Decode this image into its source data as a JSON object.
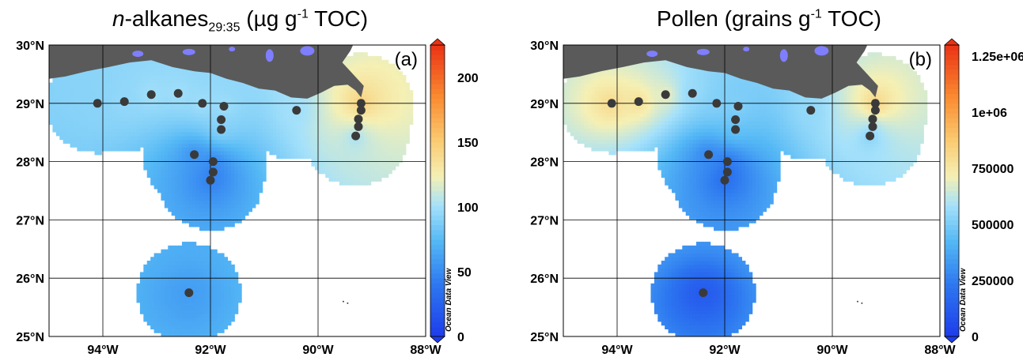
{
  "chart_data": [
    {
      "type": "heatmap",
      "panel_label": "(a)",
      "title": {
        "italic": "n",
        "main": "-alkanes",
        "sub": "29:35",
        "unit_pre": " (µg g",
        "sup": "-1",
        "unit_post": " TOC)"
      },
      "xlim": [
        -95,
        -88
      ],
      "ylim": [
        25,
        30
      ],
      "x_ticks": [
        {
          "v": -94,
          "label": "94°W"
        },
        {
          "v": -92,
          "label": "92°W"
        },
        {
          "v": -90,
          "label": "90°W"
        },
        {
          "v": -88,
          "label": "88°W"
        }
      ],
      "y_ticks": [
        {
          "v": 30,
          "label": "30°N"
        },
        {
          "v": 29,
          "label": "29°N"
        },
        {
          "v": 28,
          "label": "28°N"
        },
        {
          "v": 27,
          "label": "27°N"
        },
        {
          "v": 26,
          "label": "26°N"
        },
        {
          "v": 25,
          "label": "25°N"
        }
      ],
      "colorbar": {
        "min": 0,
        "max": 225,
        "ticks": [
          {
            "v": 200,
            "label": "200"
          },
          {
            "v": 150,
            "label": "150"
          },
          {
            "v": 100,
            "label": "100"
          },
          {
            "v": 50,
            "label": "50"
          },
          {
            "v": 0,
            "label": "0"
          }
        ]
      },
      "watermark": "Ocean Data View",
      "stations": [
        {
          "lon": -94.1,
          "lat": 29.0,
          "value": 92
        },
        {
          "lon": -93.6,
          "lat": 29.03,
          "value": 95
        },
        {
          "lon": -93.1,
          "lat": 29.15,
          "value": 100
        },
        {
          "lon": -92.6,
          "lat": 29.17,
          "value": 100
        },
        {
          "lon": -92.15,
          "lat": 29.0,
          "value": 100
        },
        {
          "lon": -91.75,
          "lat": 28.95,
          "value": 100
        },
        {
          "lon": -91.8,
          "lat": 28.72,
          "value": 95
        },
        {
          "lon": -91.8,
          "lat": 28.55,
          "value": 90
        },
        {
          "lon": -92.3,
          "lat": 28.12,
          "value": 55
        },
        {
          "lon": -91.95,
          "lat": 28.0,
          "value": 50
        },
        {
          "lon": -91.95,
          "lat": 27.82,
          "value": 45
        },
        {
          "lon": -92.0,
          "lat": 27.68,
          "value": 45
        },
        {
          "lon": -90.4,
          "lat": 28.88,
          "value": 100
        },
        {
          "lon": -89.2,
          "lat": 29.0,
          "value": 150
        },
        {
          "lon": -89.2,
          "lat": 28.88,
          "value": 140
        },
        {
          "lon": -89.25,
          "lat": 28.73,
          "value": 125
        },
        {
          "lon": -89.25,
          "lat": 28.6,
          "value": 110
        },
        {
          "lon": -89.3,
          "lat": 28.44,
          "value": 100
        },
        {
          "lon": -92.4,
          "lat": 25.75,
          "value": 60
        }
      ]
    },
    {
      "type": "heatmap",
      "panel_label": "(b)",
      "title": {
        "italic": "",
        "main": "Pollen (grains g",
        "sub": "",
        "unit_pre": "",
        "sup": "-1",
        "unit_post": " TOC)"
      },
      "xlim": [
        -95,
        -88
      ],
      "ylim": [
        25,
        30
      ],
      "x_ticks": [
        {
          "v": -94,
          "label": "94°W"
        },
        {
          "v": -92,
          "label": "92°W"
        },
        {
          "v": -90,
          "label": "90°W"
        },
        {
          "v": -88,
          "label": "88°W"
        }
      ],
      "y_ticks": [
        {
          "v": 30,
          "label": "30°N"
        },
        {
          "v": 29,
          "label": "29°N"
        },
        {
          "v": 28,
          "label": "28°N"
        },
        {
          "v": 27,
          "label": "27°N"
        },
        {
          "v": 26,
          "label": "26°N"
        },
        {
          "v": 25,
          "label": "25°N"
        }
      ],
      "colorbar": {
        "min": 0,
        "max": 1300000,
        "ticks": [
          {
            "v": 1250000,
            "label": "1.25e+06"
          },
          {
            "v": 1000000,
            "label": "1e+06"
          },
          {
            "v": 750000,
            "label": "750000"
          },
          {
            "v": 500000,
            "label": "500000"
          },
          {
            "v": 250000,
            "label": "250000"
          },
          {
            "v": 0,
            "label": "0"
          }
        ]
      },
      "watermark": "Ocean Data View",
      "stations": [
        {
          "lon": -94.1,
          "lat": 29.0,
          "value": 800000
        },
        {
          "lon": -93.6,
          "lat": 29.03,
          "value": 780000
        },
        {
          "lon": -93.1,
          "lat": 29.15,
          "value": 700000
        },
        {
          "lon": -92.6,
          "lat": 29.17,
          "value": 560000
        },
        {
          "lon": -92.15,
          "lat": 29.0,
          "value": 520000
        },
        {
          "lon": -91.75,
          "lat": 28.95,
          "value": 520000
        },
        {
          "lon": -91.8,
          "lat": 28.72,
          "value": 500000
        },
        {
          "lon": -91.8,
          "lat": 28.55,
          "value": 450000
        },
        {
          "lon": -92.3,
          "lat": 28.12,
          "value": 280000
        },
        {
          "lon": -91.95,
          "lat": 28.0,
          "value": 240000
        },
        {
          "lon": -91.95,
          "lat": 27.82,
          "value": 200000
        },
        {
          "lon": -92.0,
          "lat": 27.68,
          "value": 200000
        },
        {
          "lon": -90.4,
          "lat": 28.88,
          "value": 550000
        },
        {
          "lon": -89.2,
          "lat": 29.0,
          "value": 850000
        },
        {
          "lon": -89.2,
          "lat": 28.88,
          "value": 800000
        },
        {
          "lon": -89.25,
          "lat": 28.73,
          "value": 650000
        },
        {
          "lon": -89.25,
          "lat": 28.6,
          "value": 560000
        },
        {
          "lon": -89.3,
          "lat": 28.44,
          "value": 520000
        },
        {
          "lon": -92.4,
          "lat": 25.75,
          "value": 120000
        }
      ]
    }
  ],
  "colors": {
    "land": "#5a5a5a",
    "water_bodies": "#7e7eff",
    "station_marker": "#3a3a3a",
    "grid": "#000000"
  }
}
